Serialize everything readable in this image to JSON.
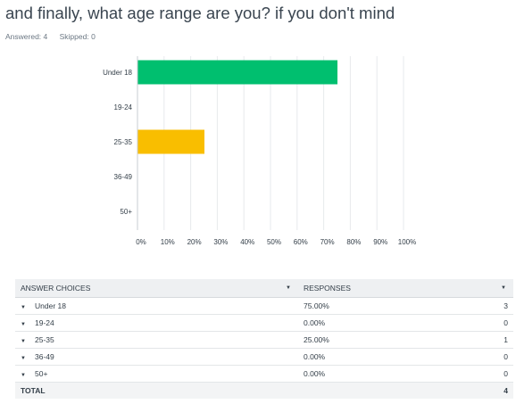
{
  "question": {
    "title": "and finally, what age range are you? if you don't mind",
    "answered_label": "Answered: 4",
    "skipped_label": "Skipped: 0"
  },
  "chart_data": {
    "type": "bar",
    "orientation": "horizontal",
    "categories": [
      "Under 18",
      "19-24",
      "25-35",
      "36-49",
      "50+"
    ],
    "values": [
      75,
      0,
      25,
      0,
      0
    ],
    "colors": [
      "#00bf6f",
      "#00bf6f",
      "#f9be00",
      "#00bf6f",
      "#00bf6f"
    ],
    "xlim": [
      0,
      100
    ],
    "x_ticks": [
      "0%",
      "10%",
      "20%",
      "30%",
      "40%",
      "50%",
      "60%",
      "70%",
      "80%",
      "90%",
      "100%"
    ],
    "grid": true
  },
  "table": {
    "headers": {
      "choices": "ANSWER CHOICES",
      "responses": "RESPONSES"
    },
    "rows": [
      {
        "choice": "Under 18",
        "percent": "75.00%",
        "count": "3"
      },
      {
        "choice": "19-24",
        "percent": "0.00%",
        "count": "0"
      },
      {
        "choice": "25-35",
        "percent": "25.00%",
        "count": "1"
      },
      {
        "choice": "36-49",
        "percent": "0.00%",
        "count": "0"
      },
      {
        "choice": "50+",
        "percent": "0.00%",
        "count": "0"
      }
    ],
    "total": {
      "label": "TOTAL",
      "count": "4"
    }
  }
}
